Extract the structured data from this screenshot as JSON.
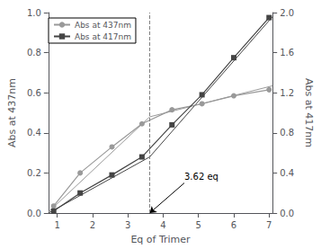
{
  "chart_data": {
    "type": "line",
    "xlabel": "Eq of Trimer",
    "ylabel": "Abs at 437nm",
    "y2label": "Abs at 417nm",
    "xlim": [
      0.75,
      7.1
    ],
    "ylim": [
      0,
      1.0
    ],
    "y2lim": [
      0,
      2.0
    ],
    "xticks": [
      1,
      2,
      3,
      4,
      5,
      6,
      7
    ],
    "yticks": [
      {
        "value": 0.0,
        "label": "0.0"
      },
      0.2,
      0.4,
      0.6,
      0.8,
      {
        "value": 1.0,
        "label": "1.0"
      }
    ],
    "y2ticks": [
      {
        "value": 0.0,
        "label": "0.0"
      },
      0.4,
      0.8,
      1.2,
      1.6,
      {
        "value": 2.0,
        "label": "2.0"
      }
    ],
    "x": [
      0.9,
      1.65,
      2.55,
      3.4,
      4.25,
      5.1,
      6.0,
      7.0
    ],
    "series": [
      {
        "name": "Abs at 437nm",
        "color": "#999999",
        "marker": "circle",
        "axis": "y",
        "values": [
          0.035,
          0.2,
          0.33,
          0.445,
          0.515,
          0.545,
          0.585,
          0.615
        ]
      },
      {
        "name": "Abs at 417nm",
        "color": "#444444",
        "marker": "square",
        "axis": "y2",
        "values": [
          0.02,
          0.2,
          0.38,
          0.56,
          0.88,
          1.18,
          1.55,
          1.95
        ]
      }
    ],
    "trend_lines": [
      {
        "color": "#999999",
        "axis": "y",
        "x": [
          0.75,
          3.62
        ],
        "values": [
          0.005,
          0.48
        ]
      },
      {
        "color": "#999999",
        "axis": "y",
        "x": [
          3.62,
          7.1
        ],
        "values": [
          0.48,
          0.635
        ]
      },
      {
        "color": "#444444",
        "axis": "y2",
        "x": [
          0.75,
          3.62
        ],
        "values": [
          0.0,
          0.56
        ]
      },
      {
        "color": "#444444",
        "axis": "y2",
        "x": [
          3.62,
          7.1
        ],
        "values": [
          0.56,
          1.96
        ]
      }
    ],
    "vline": {
      "x": 3.62,
      "color": "gray",
      "line_style": "dashed"
    },
    "annotation": {
      "text": "3.62 eq",
      "xy": [
        3.62,
        0.0
      ],
      "xytext": [
        4.6,
        0.15
      ],
      "color": "black"
    },
    "legend": "upper left",
    "grid": false
  }
}
